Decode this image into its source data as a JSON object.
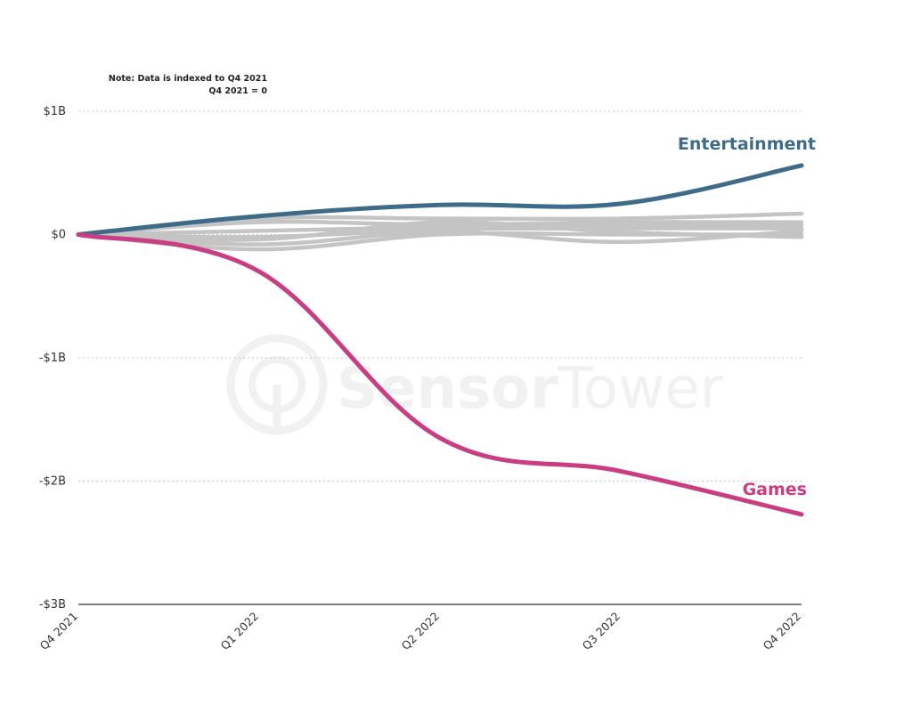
{
  "note": {
    "line1": "Note: Data is indexed to Q4 2021",
    "line2": "Q4 2021 = 0"
  },
  "watermark": {
    "brand": "Sensor",
    "brand2": "Tower"
  },
  "colors": {
    "entertainment": "#3e6b8a",
    "games": "#c93d83",
    "other": "#c4c4c4",
    "grid": "#c8c8c8",
    "axis": "#333333"
  },
  "chart_data": {
    "type": "line",
    "x": [
      "Q4 2021",
      "Q1 2022",
      "Q2 2022",
      "Q3 2022",
      "Q4 2022"
    ],
    "ylim": [
      -3,
      1
    ],
    "yticks": [
      1,
      0,
      -1,
      -2,
      -3
    ],
    "ytick_labels": [
      "$1B",
      "$0",
      "-$1B",
      "-$2B",
      "-$3B"
    ],
    "grid": true,
    "series": [
      {
        "name": "Entertainment",
        "values": [
          0,
          0.15,
          0.24,
          0.25,
          0.56
        ],
        "highlight": true,
        "label_color_key": "entertainment"
      },
      {
        "name": "Games",
        "values": [
          0,
          -0.3,
          -1.65,
          -1.92,
          -2.27
        ],
        "highlight": true,
        "label_color_key": "games"
      },
      {
        "values": [
          0,
          0.13,
          0.13,
          0.13,
          0.17
        ]
      },
      {
        "values": [
          0,
          0.1,
          0.08,
          0.1,
          0.1
        ]
      },
      {
        "values": [
          0,
          0.03,
          0.06,
          0.08,
          0.08
        ]
      },
      {
        "values": [
          0,
          -0.02,
          0.04,
          0.05,
          0.05
        ]
      },
      {
        "values": [
          0,
          -0.08,
          0.02,
          -0.06,
          0.03
        ]
      },
      {
        "values": [
          0,
          -0.12,
          0.0,
          0.0,
          0.0
        ]
      },
      {
        "values": [
          0,
          -0.04,
          0.1,
          0.02,
          -0.02
        ]
      }
    ]
  }
}
